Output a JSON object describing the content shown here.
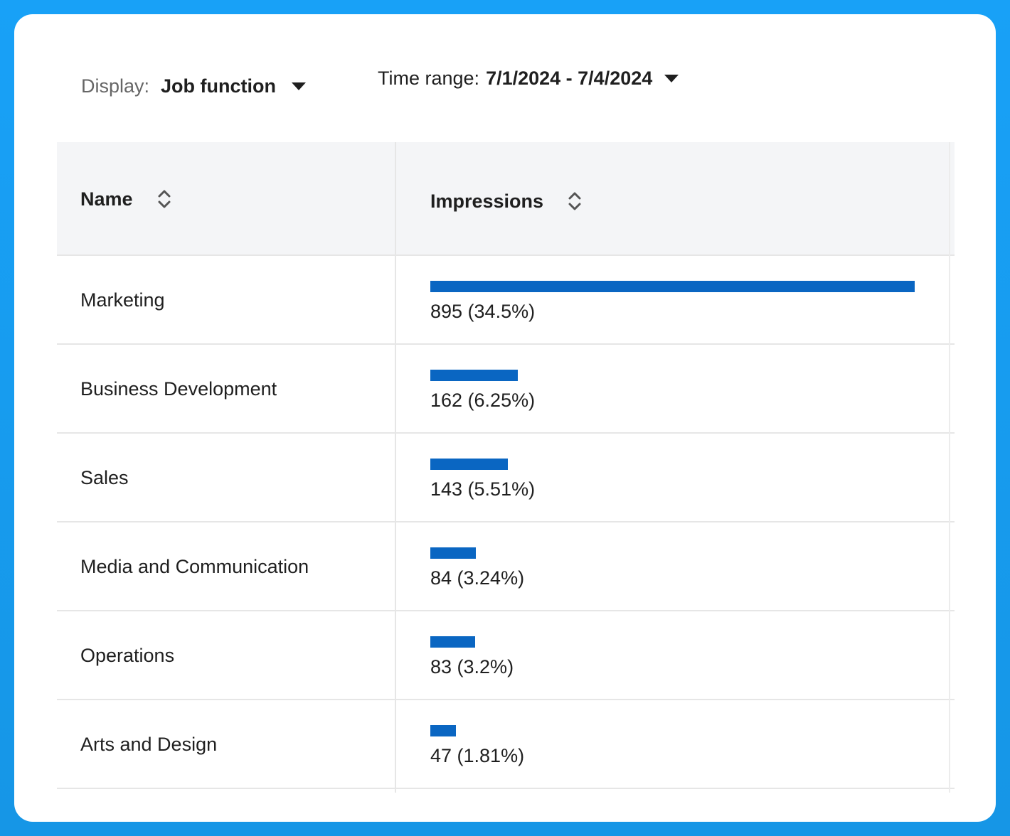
{
  "filters": {
    "display": {
      "label": "Display:",
      "value": "Job function"
    },
    "time_range": {
      "label": "Time range:",
      "value": "7/1/2024 - 7/4/2024"
    }
  },
  "table": {
    "columns": {
      "name": "Name",
      "impressions": "Impressions"
    },
    "rows": [
      {
        "name": "Marketing",
        "value": "895 (34.5%)",
        "impressions": 895
      },
      {
        "name": "Business Development",
        "value": "162 (6.25%)",
        "impressions": 162
      },
      {
        "name": "Sales",
        "value": "143 (5.51%)",
        "impressions": 143
      },
      {
        "name": "Media and Communication",
        "value": "84 (3.24%)",
        "impressions": 84
      },
      {
        "name": "Operations",
        "value": "83 (3.2%)",
        "impressions": 83
      },
      {
        "name": "Arts and Design",
        "value": "47 (1.81%)",
        "impressions": 47
      }
    ]
  },
  "colors": {
    "bar": "#0a66c2",
    "background": "#18a1f7",
    "header_bg": "#f4f5f7"
  },
  "icons": {
    "caret": "caret-down-icon",
    "sort": "sort-icon"
  }
}
